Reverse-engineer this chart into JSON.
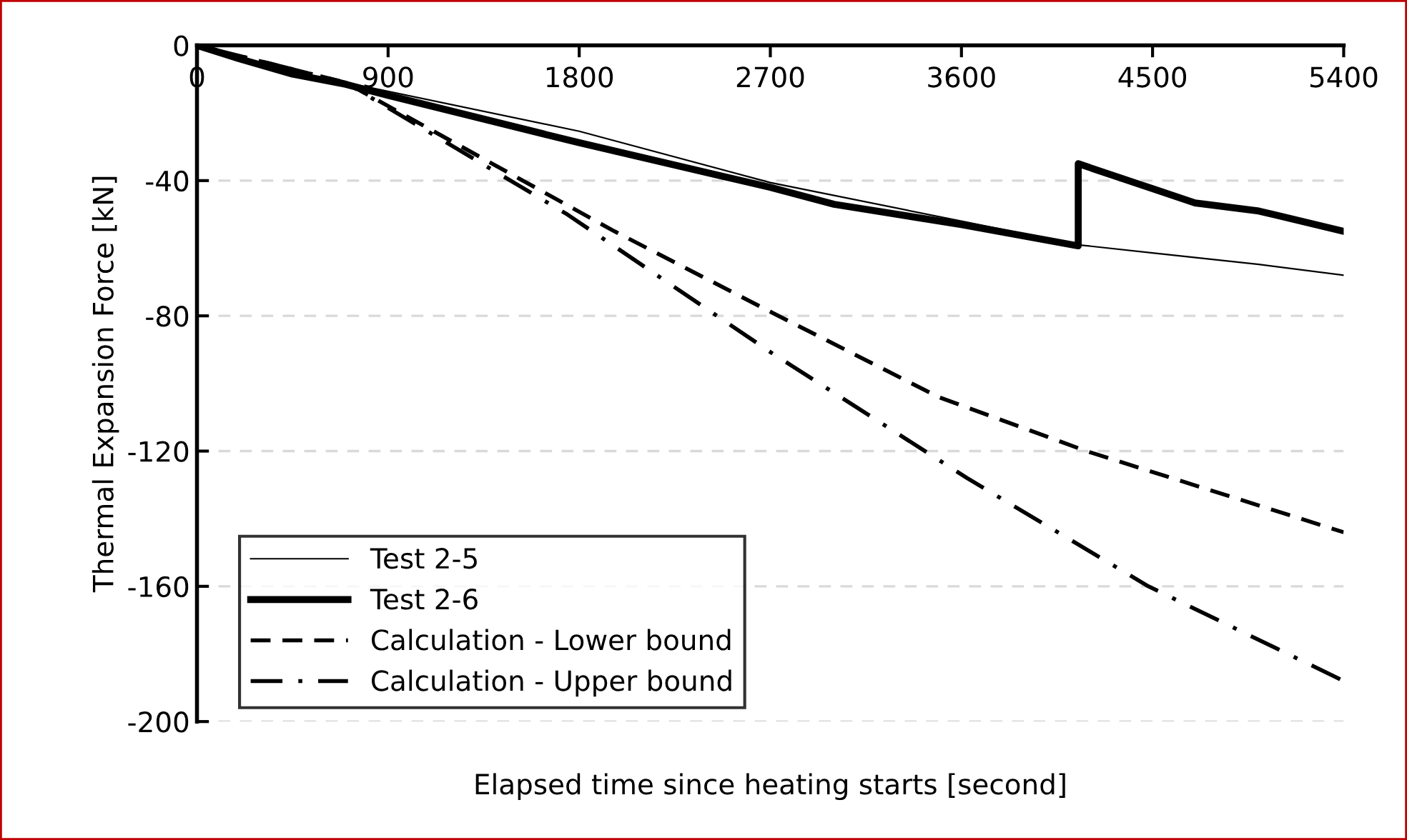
{
  "chart_data": {
    "type": "line",
    "xlabel": "Elapsed time since heating starts [second]",
    "ylabel": "Thermal Expansion Force [kN]",
    "xlim": [
      0,
      5400
    ],
    "xticks": [
      0,
      900,
      1800,
      2700,
      3600,
      4500,
      5400
    ],
    "ylim": [
      -200,
      0
    ],
    "yticks": [
      0,
      -40,
      -80,
      -120,
      -160,
      -200
    ],
    "grid": "y",
    "legend": "bottom left",
    "marker": "none",
    "series": [
      {
        "name": "Test 2-5",
        "color": "#000000",
        "line_style": "solid",
        "x": [
          0,
          200,
          450,
          700,
          1800,
          2700,
          3600,
          4150,
          4500,
          5000,
          5400
        ],
        "values": [
          0,
          -4,
          -8,
          -11,
          -25.4,
          -40.6,
          -52,
          -59,
          -61.4,
          -64.8,
          -68
        ]
      },
      {
        "name": "Test 2-6",
        "color": "#000000",
        "line_style": "solid",
        "x": [
          0,
          200,
          450,
          700,
          900,
          1800,
          2700,
          3000,
          3600,
          4150,
          4150,
          4500,
          4700,
          5000,
          5400
        ],
        "values": [
          0,
          -4,
          -8.5,
          -11.5,
          -14.8,
          -28.8,
          -42,
          -47,
          -53,
          -59.3,
          -35,
          -42.4,
          -46.6,
          -49,
          -55
        ]
      },
      {
        "name": "Calculation - Lower bound",
        "color": "#000000",
        "line_style": "dashed",
        "x": [
          0,
          350,
          700,
          1966,
          2707,
          3492,
          4188,
          5400
        ],
        "values": [
          0,
          -5.5,
          -11,
          -55,
          -79,
          -104,
          -120,
          -144
        ]
      },
      {
        "name": "Calculation - Upper bound",
        "color": "#000000",
        "line_style": "dashdot",
        "x": [
          0,
          350,
          700,
          1744,
          2707,
          3627,
          4480,
          5400
        ],
        "values": [
          0,
          -5.5,
          -11,
          -50,
          -91,
          -128,
          -160,
          -188
        ]
      }
    ]
  }
}
